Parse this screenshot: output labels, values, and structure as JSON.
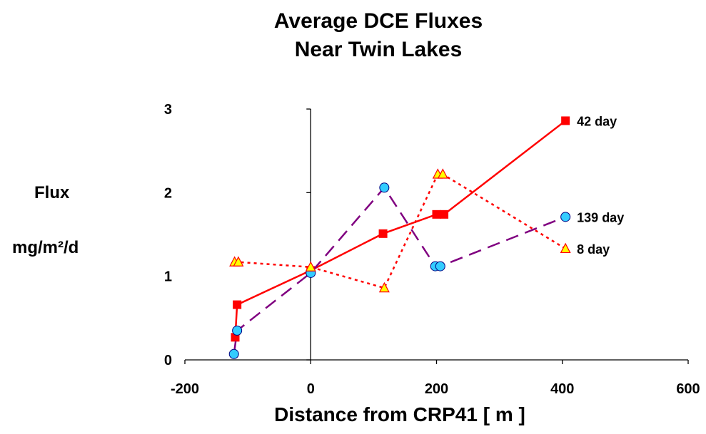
{
  "chart_data": {
    "type": "line",
    "title_line1": "Average DCE Fluxes",
    "title_line2": "Near Twin Lakes",
    "ylabel": "Flux",
    "ylabel_units": "mg/m²/d",
    "xlabel": "Distance from CRP41   [ m ]",
    "xlim": [
      -200,
      600
    ],
    "ylim": [
      0,
      3
    ],
    "xticks": [
      -200,
      0,
      200,
      400,
      600
    ],
    "yticks": [
      0,
      1,
      2,
      3
    ],
    "series": [
      {
        "name": "42 day",
        "color": "#ff0000",
        "line": "solid",
        "marker": "square",
        "marker_color": "#ff0000",
        "x": [
          -120,
          -117,
          0,
          115,
          200,
          212,
          405
        ],
        "y": [
          0.27,
          0.66,
          1.07,
          1.51,
          1.74,
          1.74,
          2.86
        ]
      },
      {
        "name": "139 day",
        "color": "#800080",
        "line": "dashed",
        "marker": "circle",
        "marker_color": "#33ccff",
        "x": [
          -122,
          -117,
          0,
          117,
          198,
          206,
          405
        ],
        "y": [
          0.07,
          0.35,
          1.04,
          2.06,
          1.12,
          1.12,
          1.71
        ]
      },
      {
        "name": "8 day",
        "color": "#ff0000",
        "line": "dotted",
        "marker": "triangle",
        "marker_color": "#ffff00",
        "x": [
          -121,
          -115,
          0,
          117,
          202,
          210,
          405
        ],
        "y": [
          1.17,
          1.17,
          1.11,
          0.86,
          2.22,
          2.22,
          1.33
        ]
      }
    ]
  }
}
